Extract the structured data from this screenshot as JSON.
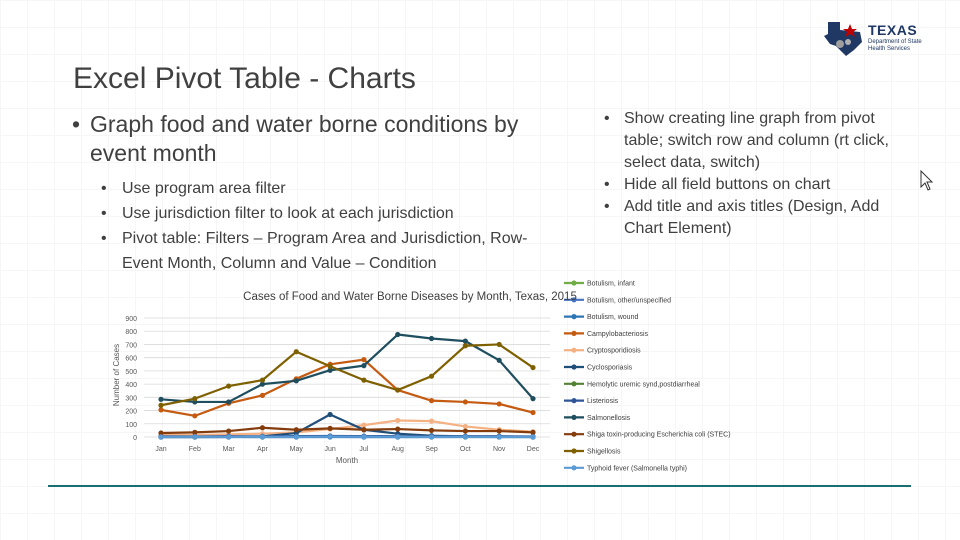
{
  "slide": {
    "title": "Excel Pivot Table - Charts",
    "left_bullet": "Graph food and water borne conditions by event month",
    "left_sub_bullets": [
      "Use program area filter",
      "Use jurisdiction filter to look at each jurisdiction",
      "Pivot table: Filters – Program Area and Jurisdiction, Row- Event Month, Column and Value – Condition"
    ],
    "right_bullets": [
      "Show creating line graph from pivot table; switch row and column (rt click, select data, switch)",
      "Hide all field buttons on chart",
      "Add title and axis titles (Design, Add Chart Element)"
    ]
  },
  "logo": {
    "name": "TEXAS",
    "subtitle": "Department of State Health Services",
    "colors": {
      "navy": "#1f3864",
      "red": "#c00000"
    }
  },
  "chart_data": {
    "type": "line",
    "title": "Cases of Food and Water Borne Diseases by Month, Texas, 2015",
    "xlabel": "Month",
    "ylabel": "Number of Cases",
    "ylim": [
      0,
      900
    ],
    "yticks": [
      0,
      100,
      200,
      300,
      400,
      500,
      600,
      700,
      800,
      900
    ],
    "grid": true,
    "legend_position": "right",
    "categories": [
      "Jan",
      "Feb",
      "Mar",
      "Apr",
      "May",
      "Jun",
      "Jul",
      "Aug",
      "Sep",
      "Oct",
      "Nov",
      "Dec"
    ],
    "series": [
      {
        "name": "Botulism, infant",
        "color": "#70ad47",
        "values": [
          2,
          1,
          2,
          1,
          2,
          1,
          2,
          1,
          2,
          1,
          2,
          1
        ]
      },
      {
        "name": "Botulism, other/unspecified",
        "color": "#4472c4",
        "values": [
          0,
          0,
          0,
          0,
          0,
          0,
          0,
          0,
          0,
          0,
          0,
          0
        ]
      },
      {
        "name": "Botulism, wound",
        "color": "#2e75b6",
        "values": [
          0,
          0,
          1,
          0,
          0,
          1,
          0,
          0,
          0,
          1,
          0,
          0
        ]
      },
      {
        "name": "Campylobacteriosis",
        "color": "#c55a11",
        "values": [
          205,
          160,
          255,
          315,
          440,
          550,
          585,
          355,
          275,
          265,
          250,
          185
        ]
      },
      {
        "name": "Cryptosporidiosis",
        "color": "#f4b183",
        "values": [
          15,
          15,
          20,
          25,
          35,
          60,
          90,
          125,
          120,
          80,
          55,
          40
        ]
      },
      {
        "name": "Cyclosporiasis",
        "color": "#1f4e79",
        "values": [
          0,
          0,
          0,
          5,
          30,
          170,
          55,
          25,
          10,
          5,
          5,
          0
        ]
      },
      {
        "name": "Hemolytic uremic synd,postdiarrheal",
        "color": "#548235",
        "values": [
          2,
          1,
          3,
          2,
          4,
          6,
          5,
          4,
          3,
          2,
          2,
          1
        ]
      },
      {
        "name": "Listeriosis",
        "color": "#2f5597",
        "values": [
          5,
          4,
          6,
          5,
          7,
          8,
          7,
          6,
          5,
          6,
          5,
          4
        ]
      },
      {
        "name": "Salmonellosis",
        "color": "#1f4e5f",
        "values": [
          285,
          265,
          265,
          400,
          425,
          505,
          540,
          775,
          745,
          725,
          580,
          290
        ]
      },
      {
        "name": "Shiga toxin-producing Escherichia coli (STEC)",
        "color": "#843c0c",
        "values": [
          30,
          35,
          45,
          70,
          55,
          65,
          55,
          60,
          50,
          45,
          45,
          35
        ]
      },
      {
        "name": "Shigellosis",
        "color": "#7f6000",
        "values": [
          240,
          290,
          385,
          430,
          645,
          535,
          430,
          355,
          460,
          690,
          700,
          525
        ]
      },
      {
        "name": "Typhoid fever (Salmonella typhi)",
        "color": "#5b9bd5",
        "values": [
          1,
          2,
          1,
          2,
          1,
          3,
          2,
          2,
          1,
          2,
          1,
          1
        ]
      }
    ]
  }
}
